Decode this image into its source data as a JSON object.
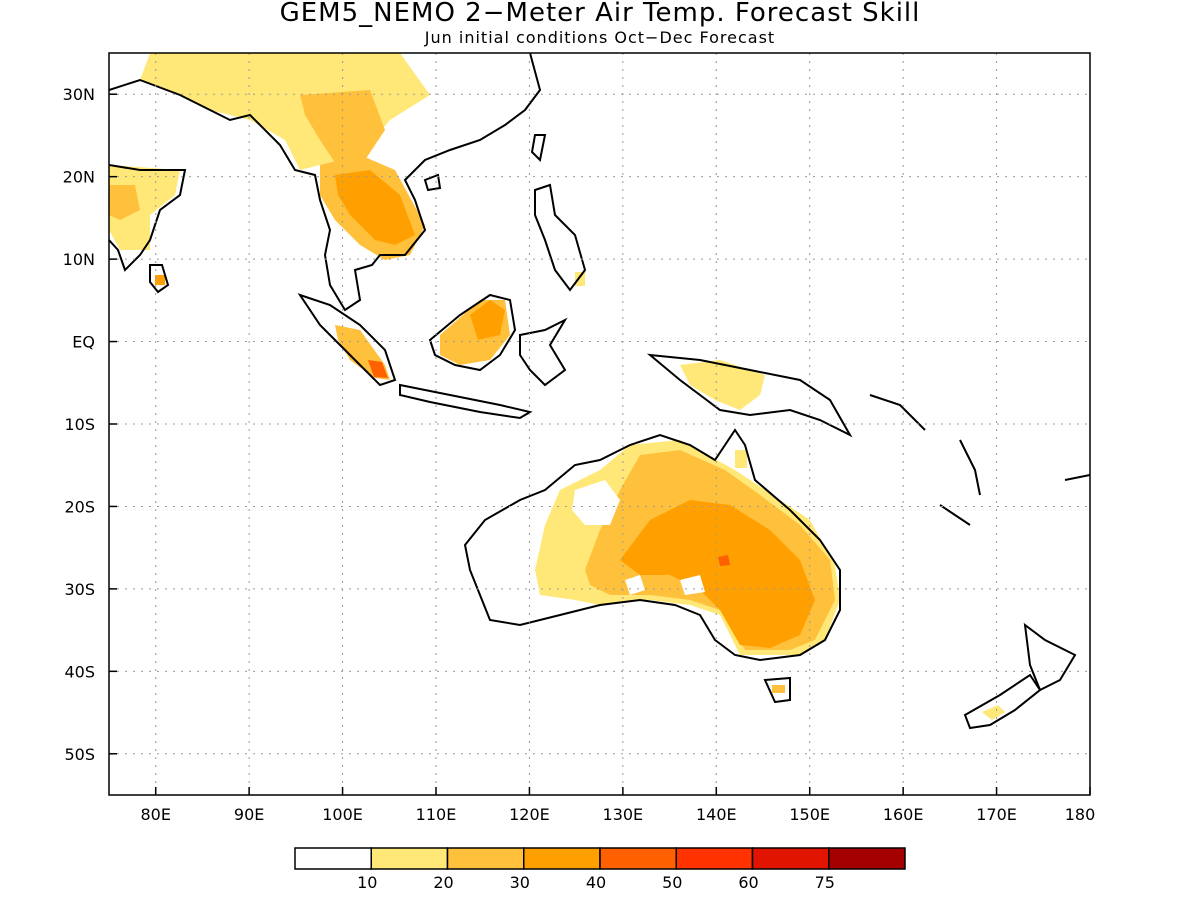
{
  "title": "GEM5_NEMO 2−Meter Air Temp. Forecast Skill",
  "subtitle": "Jun initial conditions  Oct−Dec Forecast",
  "map": {
    "lon_range": [
      75,
      180
    ],
    "lat_range": [
      -55,
      35
    ],
    "lat_ticks": [
      {
        "value": 30,
        "label": "30N"
      },
      {
        "value": 20,
        "label": "20N"
      },
      {
        "value": 10,
        "label": "10N"
      },
      {
        "value": 0,
        "label": "EQ"
      },
      {
        "value": -10,
        "label": "10S"
      },
      {
        "value": -20,
        "label": "20S"
      },
      {
        "value": -30,
        "label": "30S"
      },
      {
        "value": -40,
        "label": "40S"
      },
      {
        "value": -50,
        "label": "50S"
      }
    ],
    "lon_ticks": [
      {
        "value": 80,
        "label": "80E"
      },
      {
        "value": 90,
        "label": "90E"
      },
      {
        "value": 100,
        "label": "100E"
      },
      {
        "value": 110,
        "label": "110E"
      },
      {
        "value": 120,
        "label": "120E"
      },
      {
        "value": 130,
        "label": "130E"
      },
      {
        "value": 140,
        "label": "140E"
      },
      {
        "value": 150,
        "label": "150E"
      },
      {
        "value": 160,
        "label": "160E"
      },
      {
        "value": 170,
        "label": "170E"
      },
      {
        "value": 180,
        "label": "180"
      }
    ],
    "grid": true
  },
  "colorbar": {
    "colors": [
      "#ffffff",
      "#ffe878",
      "#ffc03c",
      "#ffa000",
      "#ff6000",
      "#ff3200",
      "#e11400",
      "#a50000"
    ],
    "labels": [
      "10",
      "20",
      "30",
      "40",
      "50",
      "60",
      "75"
    ]
  }
}
